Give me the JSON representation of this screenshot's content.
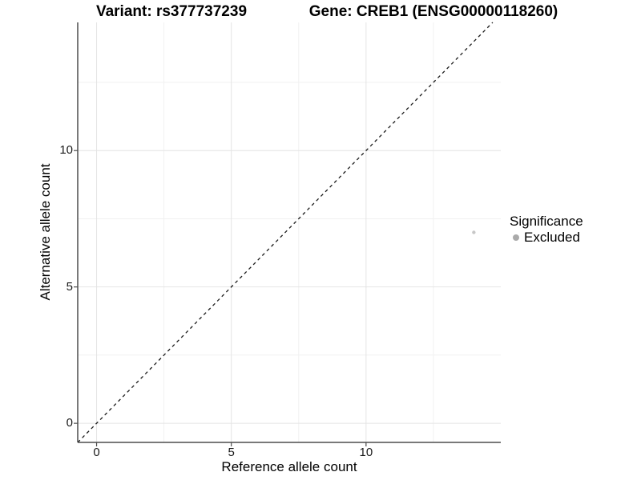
{
  "chart_data": {
    "type": "scatter",
    "title_left": "Variant: rs377737239",
    "title_right": "Gene: CREB1 (ENSG00000118260)",
    "xlabel": "Reference allele count",
    "ylabel": "Alternative allele count",
    "xlim": [
      -0.7,
      15.0
    ],
    "ylim": [
      -0.7,
      14.7
    ],
    "x_ticks": [
      0,
      5,
      10
    ],
    "y_ticks": [
      0,
      5,
      10
    ],
    "x_minor": [
      2.5,
      7.5,
      12.5
    ],
    "y_minor": [
      2.5,
      7.5,
      12.5
    ],
    "grid": true,
    "points": [
      {
        "x": 14,
        "y": 7,
        "significance": "Excluded",
        "color": "#c7c7c7",
        "radius": 2.2
      }
    ],
    "reference_line": {
      "kind": "identity y = x",
      "style": "dashed",
      "color": "#1a1a1a"
    },
    "legend": {
      "title": "Significance",
      "position": "right",
      "entries": [
        {
          "label": "Excluded",
          "color": "#aaaaaa"
        }
      ]
    },
    "colors": {
      "background": "#ffffff",
      "axis_line": "#4d4d4d",
      "grid_major": "#e4e4e4",
      "grid_minor": "#f1f1f1",
      "tick_text": "#1a1a1a"
    }
  }
}
